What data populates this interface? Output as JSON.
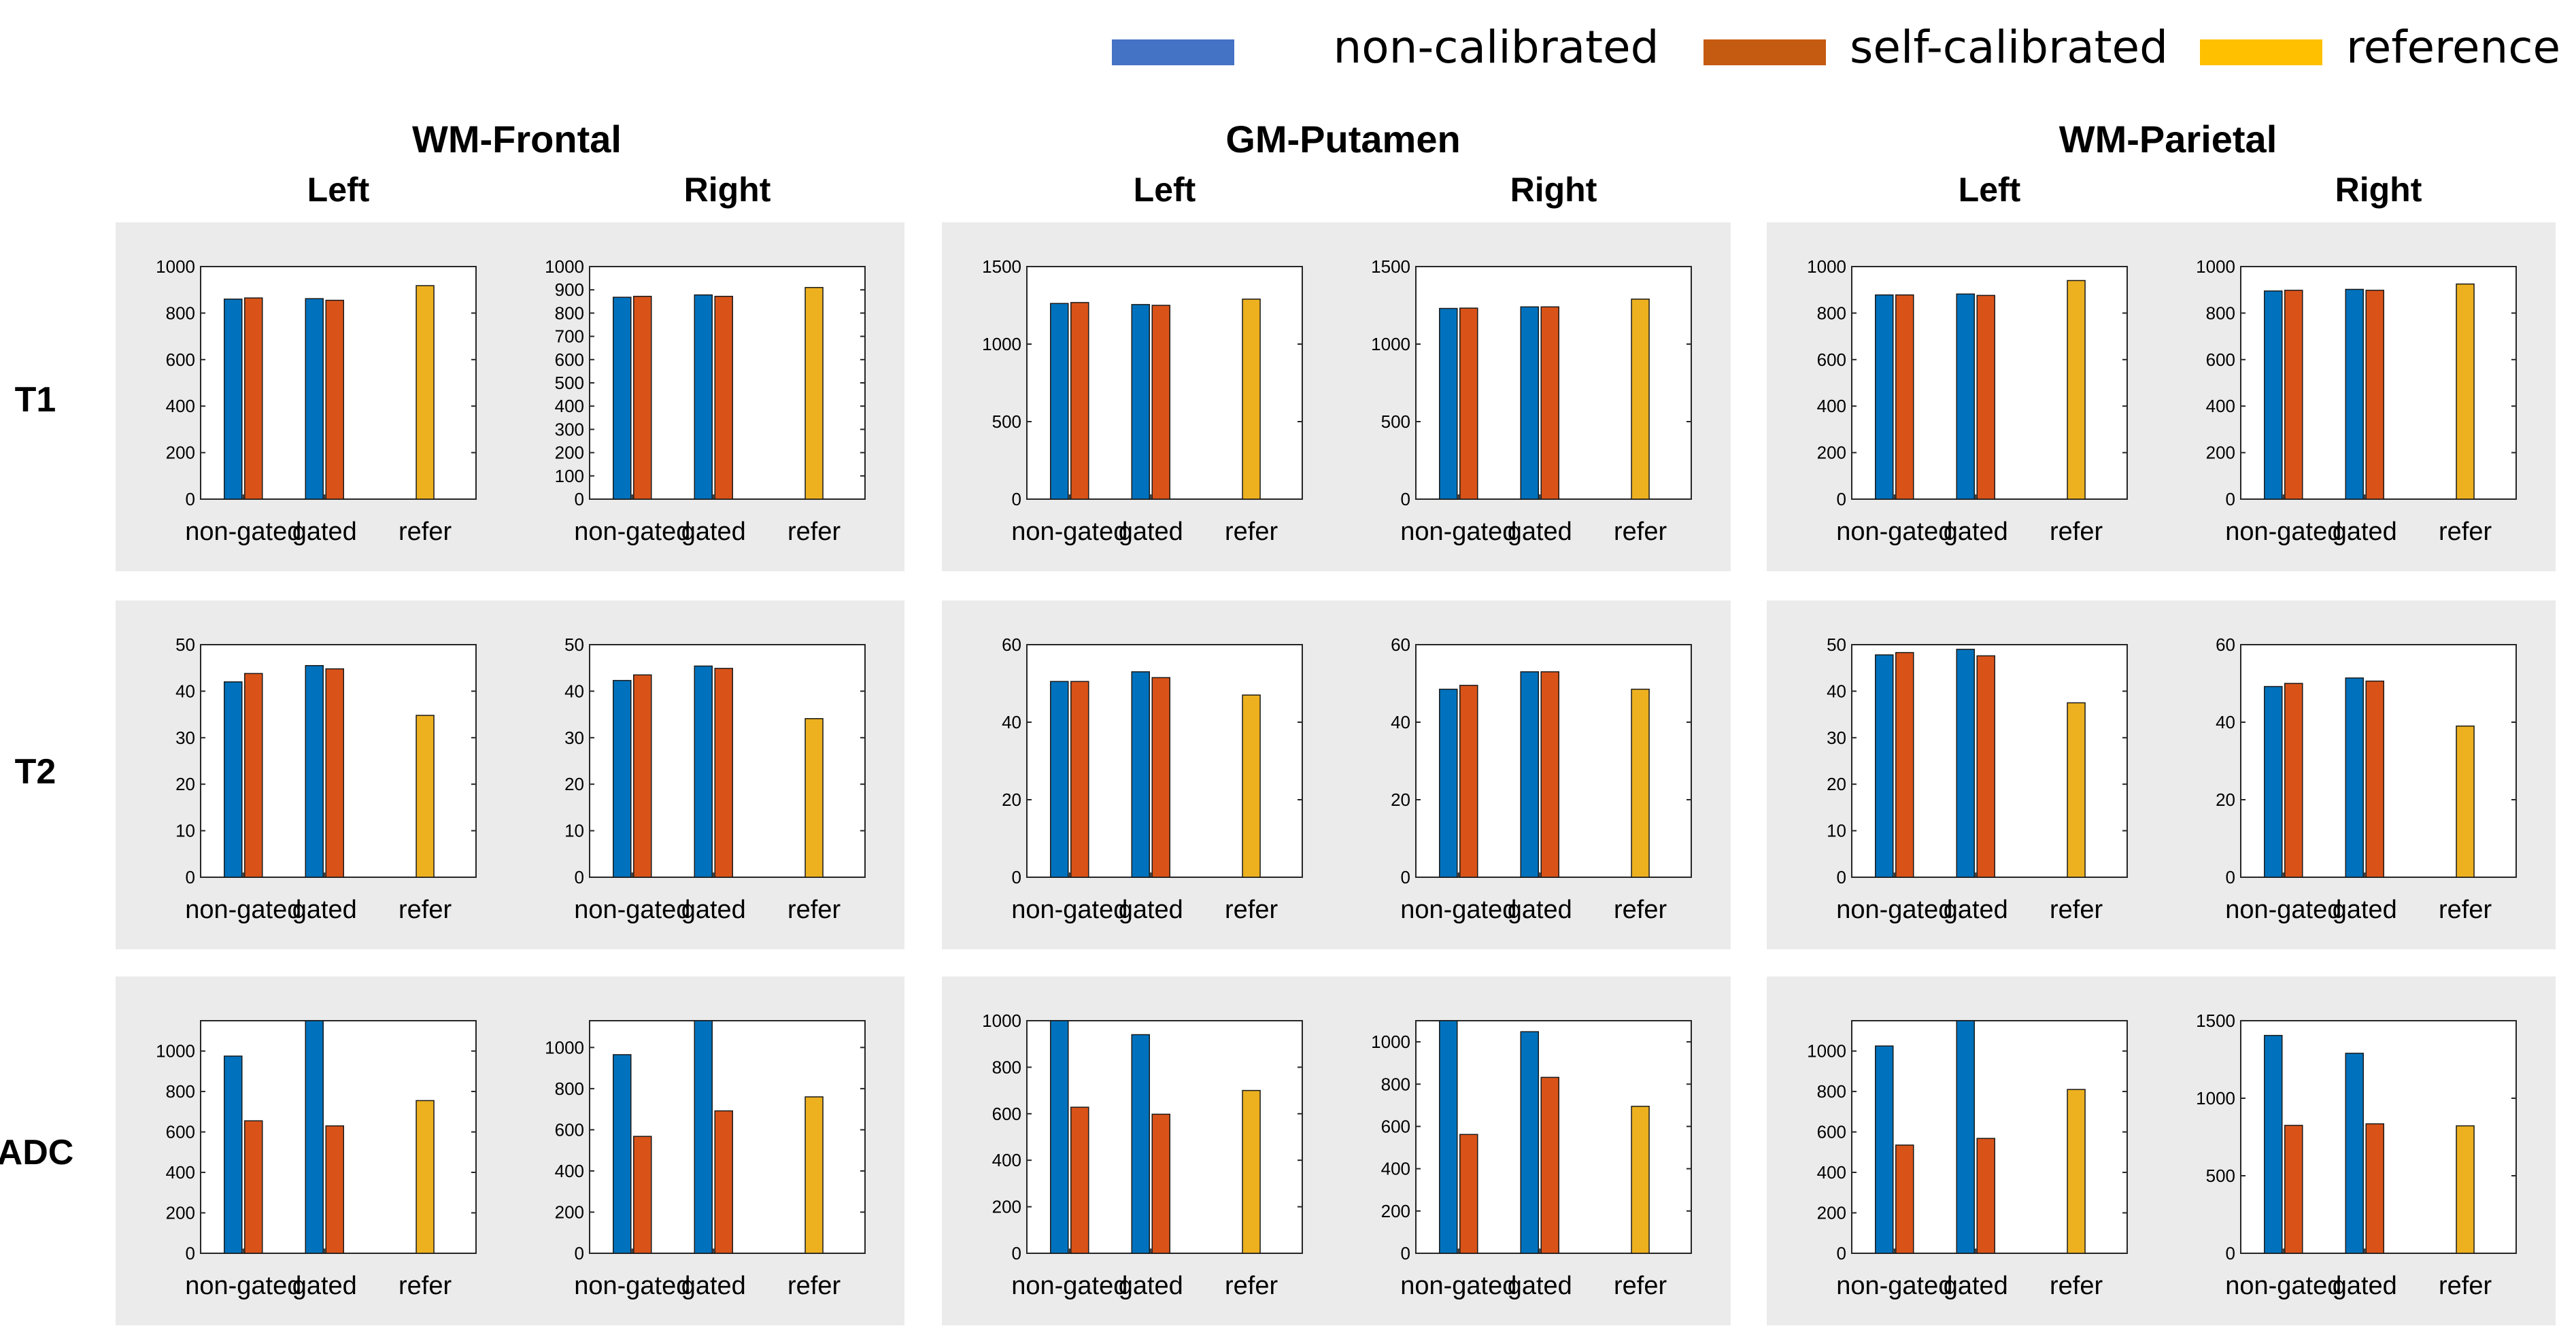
{
  "legend": [
    {
      "key": "non",
      "label": "non-calibrated",
      "color": "#4472C4"
    },
    {
      "key": "self",
      "label": "self-calibrated",
      "color": "#C55A11"
    },
    {
      "key": "ref",
      "label": "reference",
      "color": "#FFC000"
    }
  ],
  "colors": {
    "non": "#0072BD",
    "self": "#D95319",
    "ref": "#EDB120",
    "panel_bg": "#EBEBEB"
  },
  "regions": [
    "WM-Frontal",
    "GM-Putamen",
    "WM-Parietal"
  ],
  "sides": [
    "Left",
    "Right"
  ],
  "metrics": [
    "T1",
    "T2",
    "ADC"
  ],
  "categories": [
    "non-gated",
    "gated",
    "refer"
  ],
  "chart_data": [
    {
      "type": "bar",
      "metric": "T1",
      "region": "WM-Frontal",
      "side": "Left",
      "ylim": [
        0,
        1000
      ],
      "yticks": [
        0,
        200,
        400,
        600,
        800,
        1000
      ],
      "series": [
        {
          "name": "non-calibrated",
          "values": [
            860,
            862,
            null
          ]
        },
        {
          "name": "self-calibrated",
          "values": [
            865,
            855,
            null
          ]
        },
        {
          "name": "reference",
          "values": [
            null,
            null,
            918
          ]
        }
      ]
    },
    {
      "type": "bar",
      "metric": "T1",
      "region": "WM-Frontal",
      "side": "Right",
      "ylim": [
        0,
        1000
      ],
      "yticks": [
        0,
        100,
        200,
        300,
        400,
        500,
        600,
        700,
        800,
        900,
        1000
      ],
      "series": [
        {
          "name": "non-calibrated",
          "values": [
            868,
            878,
            null
          ]
        },
        {
          "name": "self-calibrated",
          "values": [
            872,
            872,
            null
          ]
        },
        {
          "name": "reference",
          "values": [
            null,
            null,
            910
          ]
        }
      ]
    },
    {
      "type": "bar",
      "metric": "T1",
      "region": "GM-Putamen",
      "side": "Left",
      "ylim": [
        0,
        1500
      ],
      "yticks": [
        0,
        500,
        1000,
        1500
      ],
      "series": [
        {
          "name": "non-calibrated",
          "values": [
            1262,
            1255,
            null
          ]
        },
        {
          "name": "self-calibrated",
          "values": [
            1268,
            1250,
            null
          ]
        },
        {
          "name": "reference",
          "values": [
            null,
            null,
            1290
          ]
        }
      ]
    },
    {
      "type": "bar",
      "metric": "T1",
      "region": "GM-Putamen",
      "side": "Right",
      "ylim": [
        0,
        1500
      ],
      "yticks": [
        0,
        500,
        1000,
        1500
      ],
      "series": [
        {
          "name": "non-calibrated",
          "values": [
            1230,
            1240,
            null
          ]
        },
        {
          "name": "self-calibrated",
          "values": [
            1232,
            1240,
            null
          ]
        },
        {
          "name": "reference",
          "values": [
            null,
            null,
            1290
          ]
        }
      ]
    },
    {
      "type": "bar",
      "metric": "T1",
      "region": "WM-Parietal",
      "side": "Left",
      "ylim": [
        0,
        1000
      ],
      "yticks": [
        0,
        200,
        400,
        600,
        800,
        1000
      ],
      "series": [
        {
          "name": "non-calibrated",
          "values": [
            878,
            882,
            null
          ]
        },
        {
          "name": "self-calibrated",
          "values": [
            878,
            876,
            null
          ]
        },
        {
          "name": "reference",
          "values": [
            null,
            null,
            940
          ]
        }
      ]
    },
    {
      "type": "bar",
      "metric": "T1",
      "region": "WM-Parietal",
      "side": "Right",
      "ylim": [
        0,
        1000
      ],
      "yticks": [
        0,
        200,
        400,
        600,
        800,
        1000
      ],
      "series": [
        {
          "name": "non-calibrated",
          "values": [
            895,
            902,
            null
          ]
        },
        {
          "name": "self-calibrated",
          "values": [
            898,
            898,
            null
          ]
        },
        {
          "name": "reference",
          "values": [
            null,
            null,
            925
          ]
        }
      ]
    },
    {
      "type": "bar",
      "metric": "T2",
      "region": "WM-Frontal",
      "side": "Left",
      "ylim": [
        0,
        50
      ],
      "yticks": [
        0,
        10,
        20,
        30,
        40,
        50
      ],
      "series": [
        {
          "name": "non-calibrated",
          "values": [
            42,
            45.5,
            null
          ]
        },
        {
          "name": "self-calibrated",
          "values": [
            43.8,
            44.8,
            null
          ]
        },
        {
          "name": "reference",
          "values": [
            null,
            null,
            34.8
          ]
        }
      ]
    },
    {
      "type": "bar",
      "metric": "T2",
      "region": "WM-Frontal",
      "side": "Right",
      "ylim": [
        0,
        50
      ],
      "yticks": [
        0,
        10,
        20,
        30,
        40,
        50
      ],
      "series": [
        {
          "name": "non-calibrated",
          "values": [
            42.3,
            45.4,
            null
          ]
        },
        {
          "name": "self-calibrated",
          "values": [
            43.5,
            44.9,
            null
          ]
        },
        {
          "name": "reference",
          "values": [
            null,
            null,
            34.1
          ]
        }
      ]
    },
    {
      "type": "bar",
      "metric": "T2",
      "region": "GM-Putamen",
      "side": "Left",
      "ylim": [
        0,
        60
      ],
      "yticks": [
        0,
        20,
        40,
        60
      ],
      "series": [
        {
          "name": "non-calibrated",
          "values": [
            50.5,
            53,
            null
          ]
        },
        {
          "name": "self-calibrated",
          "values": [
            50.5,
            51.5,
            null
          ]
        },
        {
          "name": "reference",
          "values": [
            null,
            null,
            47
          ]
        }
      ]
    },
    {
      "type": "bar",
      "metric": "T2",
      "region": "GM-Putamen",
      "side": "Right",
      "ylim": [
        0,
        60
      ],
      "yticks": [
        0,
        20,
        40,
        60
      ],
      "series": [
        {
          "name": "non-calibrated",
          "values": [
            48.5,
            53,
            null
          ]
        },
        {
          "name": "self-calibrated",
          "values": [
            49.5,
            53,
            null
          ]
        },
        {
          "name": "reference",
          "values": [
            null,
            null,
            48.5
          ]
        }
      ]
    },
    {
      "type": "bar",
      "metric": "T2",
      "region": "WM-Parietal",
      "side": "Left",
      "ylim": [
        0,
        50
      ],
      "yticks": [
        0,
        10,
        20,
        30,
        40,
        50
      ],
      "series": [
        {
          "name": "non-calibrated",
          "values": [
            47.8,
            49,
            null
          ]
        },
        {
          "name": "self-calibrated",
          "values": [
            48.3,
            47.6,
            null
          ]
        },
        {
          "name": "reference",
          "values": [
            null,
            null,
            37.5
          ]
        }
      ]
    },
    {
      "type": "bar",
      "metric": "T2",
      "region": "WM-Parietal",
      "side": "Right",
      "ylim": [
        0,
        60
      ],
      "yticks": [
        0,
        20,
        40,
        60
      ],
      "series": [
        {
          "name": "non-calibrated",
          "values": [
            49.2,
            51.4,
            null
          ]
        },
        {
          "name": "self-calibrated",
          "values": [
            50,
            50.6,
            null
          ]
        },
        {
          "name": "reference",
          "values": [
            null,
            null,
            39
          ]
        }
      ]
    },
    {
      "type": "bar",
      "metric": "ADC",
      "region": "WM-Frontal",
      "side": "Left",
      "ylim": [
        0,
        1150
      ],
      "yticks": [
        0,
        200,
        400,
        600,
        800,
        1000
      ],
      "series": [
        {
          "name": "non-calibrated",
          "values": [
            975,
            1150,
            null
          ]
        },
        {
          "name": "self-calibrated",
          "values": [
            655,
            630,
            null
          ]
        },
        {
          "name": "reference",
          "values": [
            null,
            null,
            755
          ]
        }
      ]
    },
    {
      "type": "bar",
      "metric": "ADC",
      "region": "WM-Frontal",
      "side": "Right",
      "ylim": [
        0,
        1130
      ],
      "yticks": [
        0,
        200,
        400,
        600,
        800,
        1000
      ],
      "series": [
        {
          "name": "non-calibrated",
          "values": [
            965,
            1130,
            null
          ]
        },
        {
          "name": "self-calibrated",
          "values": [
            568,
            692,
            null
          ]
        },
        {
          "name": "reference",
          "values": [
            null,
            null,
            760
          ]
        }
      ]
    },
    {
      "type": "bar",
      "metric": "ADC",
      "region": "GM-Putamen",
      "side": "Left",
      "ylim": [
        0,
        1000
      ],
      "yticks": [
        0,
        200,
        400,
        600,
        800,
        1000
      ],
      "series": [
        {
          "name": "non-calibrated",
          "values": [
            1000,
            940,
            null
          ]
        },
        {
          "name": "self-calibrated",
          "values": [
            628,
            598,
            null
          ]
        },
        {
          "name": "reference",
          "values": [
            null,
            null,
            700
          ]
        }
      ]
    },
    {
      "type": "bar",
      "metric": "ADC",
      "region": "GM-Putamen",
      "side": "Right",
      "ylim": [
        0,
        1100
      ],
      "yticks": [
        0,
        200,
        400,
        600,
        800,
        1000
      ],
      "series": [
        {
          "name": "non-calibrated",
          "values": [
            1100,
            1048,
            null
          ]
        },
        {
          "name": "self-calibrated",
          "values": [
            562,
            832,
            null
          ]
        },
        {
          "name": "reference",
          "values": [
            null,
            null,
            695
          ]
        }
      ]
    },
    {
      "type": "bar",
      "metric": "ADC",
      "region": "WM-Parietal",
      "side": "Left",
      "ylim": [
        0,
        1150
      ],
      "yticks": [
        0,
        200,
        400,
        600,
        800,
        1000
      ],
      "series": [
        {
          "name": "non-calibrated",
          "values": [
            1025,
            1150,
            null
          ]
        },
        {
          "name": "self-calibrated",
          "values": [
            535,
            568,
            null
          ]
        },
        {
          "name": "reference",
          "values": [
            null,
            null,
            810
          ]
        }
      ]
    },
    {
      "type": "bar",
      "metric": "ADC",
      "region": "WM-Parietal",
      "side": "Right",
      "ylim": [
        0,
        1500
      ],
      "yticks": [
        0,
        500,
        1000,
        1500
      ],
      "series": [
        {
          "name": "non-calibrated",
          "values": [
            1405,
            1290,
            null
          ]
        },
        {
          "name": "self-calibrated",
          "values": [
            825,
            835,
            null
          ]
        },
        {
          "name": "reference",
          "values": [
            null,
            null,
            822
          ]
        }
      ]
    }
  ]
}
